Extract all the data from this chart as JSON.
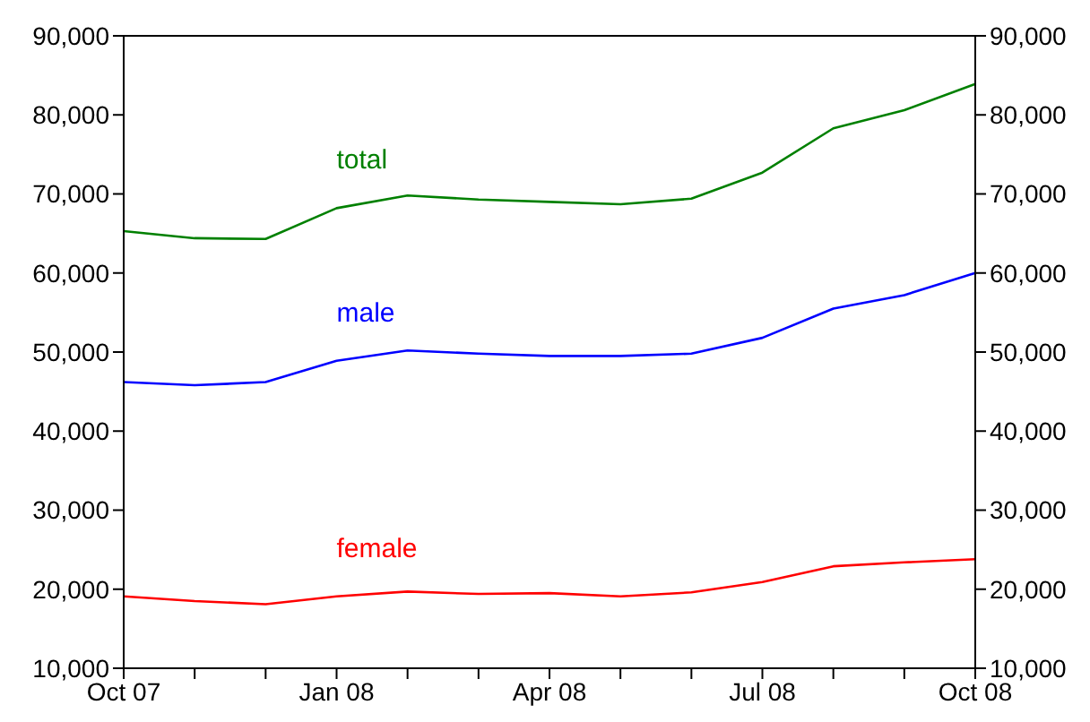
{
  "chart_data": {
    "type": "line",
    "categories": [
      "Oct 07",
      null,
      null,
      "Jan 08",
      null,
      null,
      "Apr 08",
      null,
      null,
      "Jul 08",
      null,
      null,
      "Oct 08"
    ],
    "series": [
      {
        "name": "total",
        "color": "#008000",
        "values": [
          65300,
          64400,
          64300,
          68200,
          69800,
          69300,
          69000,
          68700,
          69400,
          72700,
          78300,
          80600,
          83900
        ]
      },
      {
        "name": "male",
        "color": "#0000ff",
        "values": [
          46200,
          45800,
          46200,
          48900,
          50200,
          49800,
          49500,
          49500,
          49800,
          51800,
          55500,
          57200,
          60000
        ]
      },
      {
        "name": "female",
        "color": "#ff0000",
        "values": [
          19100,
          18500,
          18100,
          19100,
          19700,
          19400,
          19500,
          19100,
          19600,
          20900,
          22900,
          23400,
          23800
        ]
      }
    ],
    "ylim": [
      10000,
      90000
    ],
    "yticks": [
      {
        "value": 10000,
        "label": "10,000"
      },
      {
        "value": 20000,
        "label": "20,000"
      },
      {
        "value": 30000,
        "label": "30,000"
      },
      {
        "value": 40000,
        "label": "40,000"
      },
      {
        "value": 50000,
        "label": "50,000"
      },
      {
        "value": 60000,
        "label": "60,000"
      },
      {
        "value": 70000,
        "label": "70,000"
      },
      {
        "value": 80000,
        "label": "80,000"
      },
      {
        "value": 90000,
        "label": "90,000"
      }
    ],
    "y2lim": [
      10000,
      90000
    ],
    "y2ticks": [
      {
        "value": 10000,
        "label": "10,000"
      },
      {
        "value": 20000,
        "label": "20,000"
      },
      {
        "value": 30000,
        "label": "30,000"
      },
      {
        "value": 40000,
        "label": "40,000"
      },
      {
        "value": 50000,
        "label": "50,000"
      },
      {
        "value": 60000,
        "label": "60,000"
      },
      {
        "value": 70000,
        "label": "70,000"
      },
      {
        "value": 80000,
        "label": "80,000"
      },
      {
        "value": 90000,
        "label": "90,000"
      }
    ],
    "grid": false,
    "legend": false
  }
}
